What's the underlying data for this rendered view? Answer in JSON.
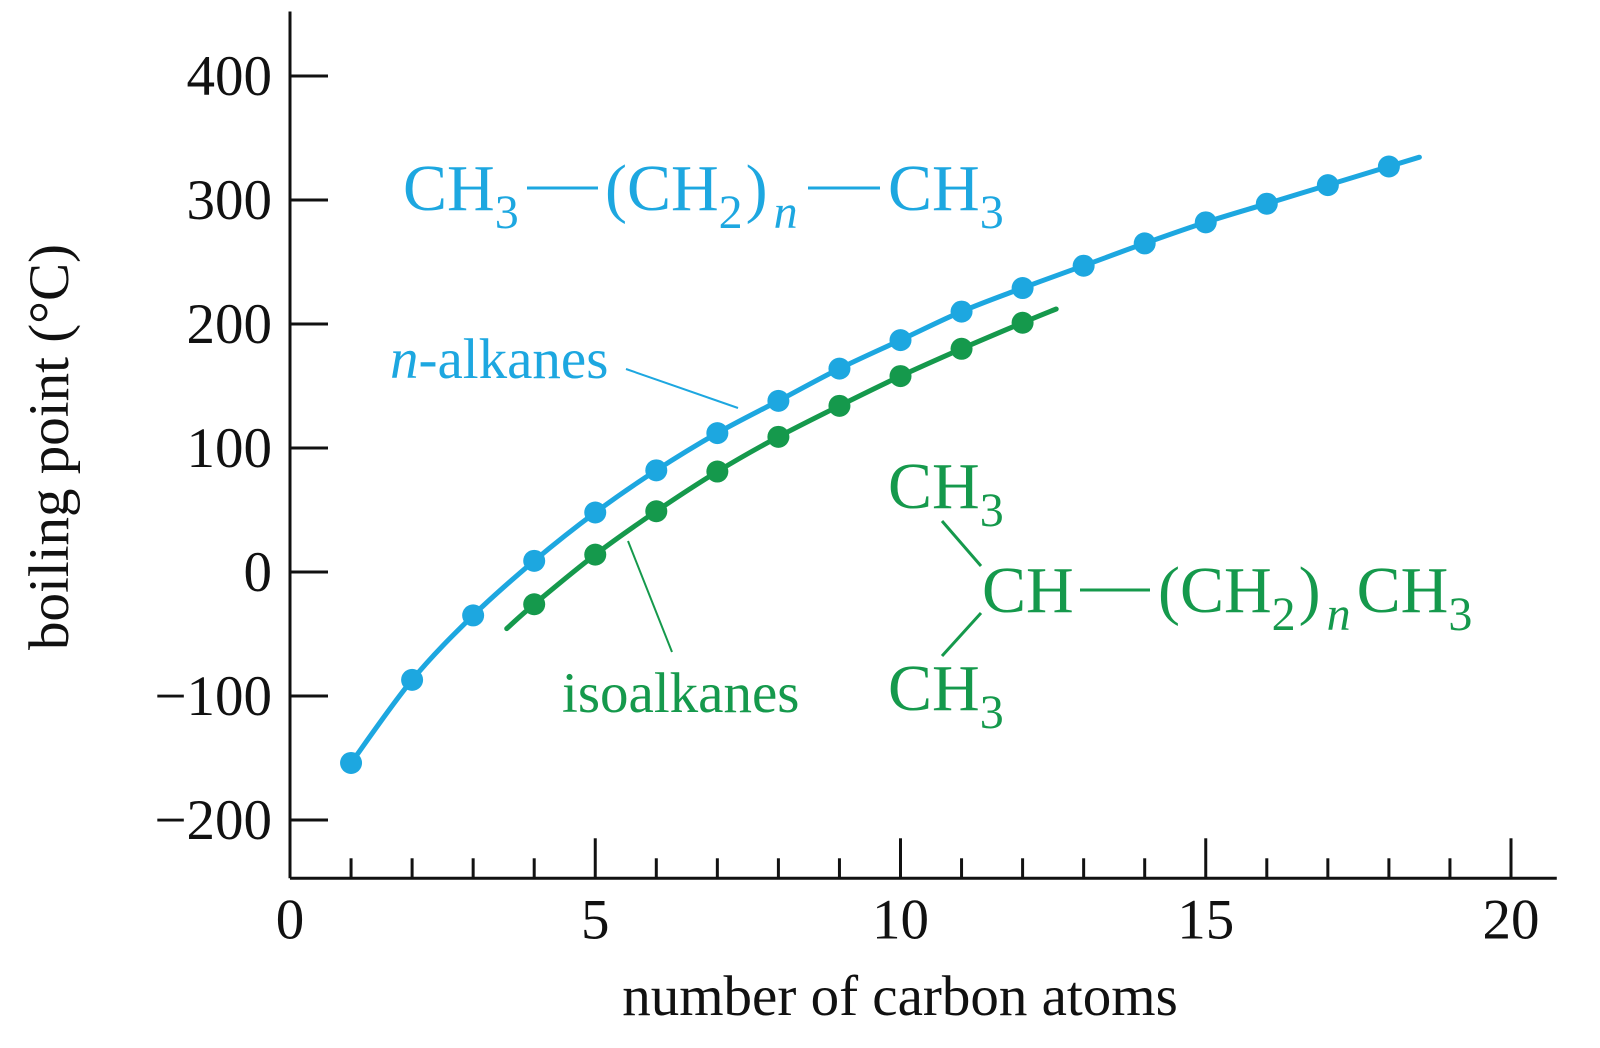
{
  "chart_data": {
    "type": "line",
    "xlabel": "number of carbon atoms",
    "ylabel": "boiling point (°C)",
    "xlim": [
      0,
      20.75
    ],
    "ylim": [
      -247,
      452
    ],
    "xticks": [
      0,
      5,
      10,
      15,
      20
    ],
    "xtick_labels": [
      "0",
      "5",
      "10",
      "15",
      "20"
    ],
    "x_minor_tick_interval": 1,
    "yticks": [
      -200,
      -100,
      0,
      100,
      200,
      300,
      400
    ],
    "ytick_labels": [
      "−200",
      "−100",
      "0",
      "100",
      "200",
      "300",
      "400"
    ],
    "grid": false,
    "series": [
      {
        "name": "n-alkanes",
        "color": "#1DA7E0",
        "x": [
          1,
          2,
          3,
          4,
          5,
          6,
          7,
          8,
          9,
          10,
          11,
          12,
          13,
          14,
          15,
          16,
          17,
          18
        ],
        "y": [
          -154,
          -87,
          -35,
          9,
          48,
          82,
          112,
          138,
          164,
          187,
          210,
          229,
          247,
          265,
          282,
          297,
          312,
          327
        ],
        "fit_curve_x_range": [
          1,
          18.5
        ]
      },
      {
        "name": "isoalkanes",
        "color": "#15994C",
        "x": [
          4,
          5,
          6,
          7,
          8,
          9,
          10,
          11,
          12
        ],
        "y": [
          -26,
          14,
          49,
          81,
          109,
          134,
          158,
          180,
          201
        ],
        "fit_curve_x_range": [
          3.55,
          12.55
        ]
      }
    ]
  },
  "annotations": {
    "n_alkane_formula": [
      "CH",
      "3",
      "(CH",
      "2",
      ")",
      "n",
      "CH",
      "3"
    ],
    "isoalkane_formula": {
      "top": [
        "CH",
        "3"
      ],
      "center": "CH",
      "chain": [
        "(CH",
        "2",
        ")",
        "n",
        "CH",
        "3"
      ],
      "bottom": [
        "CH",
        "3"
      ]
    }
  }
}
